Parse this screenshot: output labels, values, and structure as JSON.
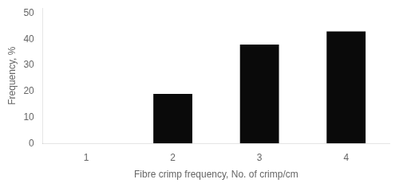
{
  "chart_data": {
    "type": "bar",
    "x": [
      1,
      2,
      3,
      4
    ],
    "values": [
      0,
      19,
      38,
      43
    ],
    "color": "#0a0a0a",
    "xlabel": "Fibre crimp frequency, No. of crimp/cm",
    "ylabel": "Frequency, %",
    "xlim": [
      0.5,
      4.5
    ],
    "xticks": [
      1,
      2,
      3,
      4
    ],
    "ylim": [
      0,
      52
    ],
    "yticks": [
      0,
      10,
      20,
      30,
      40,
      50
    ],
    "grid": false
  }
}
